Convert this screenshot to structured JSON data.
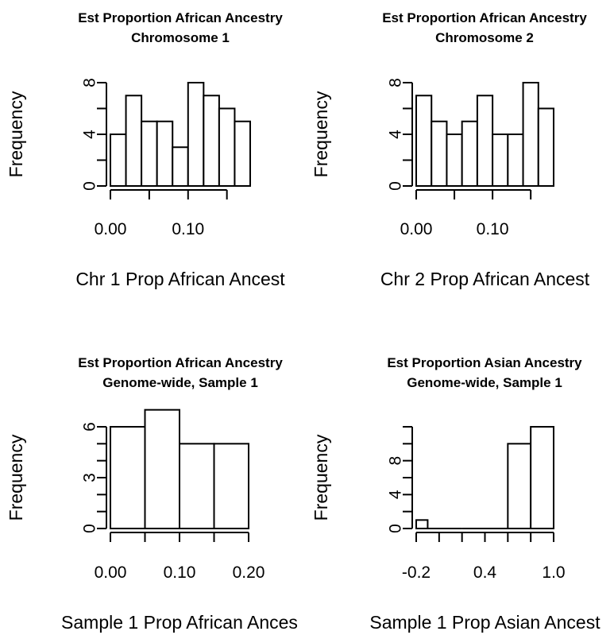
{
  "chart_data": [
    {
      "type": "bar",
      "title": [
        "Est Proportion African Ancestry",
        "Chromosome 1"
      ],
      "xlabel": "Chr 1 Prop African Ancest",
      "ylabel": "Frequency",
      "bin_edges": [
        0.0,
        0.02,
        0.04,
        0.06,
        0.08,
        0.1,
        0.12,
        0.14,
        0.16,
        0.18
      ],
      "values": [
        4,
        7,
        5,
        5,
        3,
        8,
        7,
        6,
        5
      ],
      "xlim": [
        0.0,
        0.18
      ],
      "ylim": [
        0,
        8
      ],
      "x_ticks": [
        0.0,
        0.05,
        0.1,
        0.15
      ],
      "x_tick_labels": {
        "0": "0.00",
        "2": "0.10"
      },
      "y_ticks": [
        0,
        2,
        4,
        6,
        8
      ],
      "y_tick_labels": {
        "0": "0",
        "2": "4",
        "4": "8"
      }
    },
    {
      "type": "bar",
      "title": [
        "Est Proportion African Ancestry",
        "Chromosome 2"
      ],
      "xlabel": "Chr 2 Prop African Ancest",
      "ylabel": "Frequency",
      "bin_edges": [
        0.0,
        0.02,
        0.04,
        0.06,
        0.08,
        0.1,
        0.12,
        0.14,
        0.16,
        0.18
      ],
      "values": [
        7,
        5,
        4,
        5,
        7,
        4,
        4,
        8,
        6
      ],
      "xlim": [
        0.0,
        0.18
      ],
      "ylim": [
        0,
        8
      ],
      "x_ticks": [
        0.0,
        0.05,
        0.1,
        0.15
      ],
      "x_tick_labels": {
        "0": "0.00",
        "2": "0.10"
      },
      "y_ticks": [
        0,
        2,
        4,
        6,
        8
      ],
      "y_tick_labels": {
        "0": "0",
        "2": "4",
        "4": "8"
      }
    },
    {
      "type": "bar",
      "title": [
        "Est Proportion African Ancestry",
        "Genome-wide, Sample 1"
      ],
      "xlabel": "Sample 1 Prop African Ances",
      "ylabel": "Frequency",
      "bin_edges": [
        0.0,
        0.05,
        0.1,
        0.15,
        0.2
      ],
      "values": [
        6,
        7,
        5,
        5
      ],
      "xlim": [
        0.0,
        0.2
      ],
      "ylim": [
        0,
        6
      ],
      "x_ticks": [
        0.0,
        0.05,
        0.1,
        0.15,
        0.2
      ],
      "x_tick_labels": {
        "0": "0.00",
        "2": "0.10",
        "4": "0.20"
      },
      "y_ticks": [
        0,
        1,
        2,
        3,
        4,
        5,
        6
      ],
      "y_tick_labels": {
        "0": "0",
        "3": "3",
        "6": "6"
      }
    },
    {
      "type": "bar",
      "title": [
        "Est Proportion Asian Ancestry",
        "Genome-wide, Sample 1"
      ],
      "xlabel": "Sample 1 Prop Asian Ancest",
      "ylabel": "Frequency",
      "bin_edges": [
        -0.2,
        -0.1,
        0.0,
        0.1,
        0.2,
        0.3,
        0.4,
        0.5,
        0.6,
        0.7,
        0.8,
        0.9,
        1.0
      ],
      "values": [
        1,
        0,
        0,
        0,
        0,
        0,
        0,
        0,
        10,
        0,
        12,
        0
      ],
      "bar_bins": [
        [
          -0.2,
          -0.1,
          1
        ],
        [
          -0.1,
          0.2,
          0
        ],
        [
          0.2,
          0.4,
          0
        ],
        [
          0.4,
          0.6,
          0
        ],
        [
          0.6,
          0.8,
          10
        ],
        [
          0.8,
          1.0,
          12
        ]
      ],
      "xlim": [
        -0.2,
        1.0
      ],
      "ylim": [
        0,
        12
      ],
      "x_ticks": [
        -0.2,
        0.0,
        0.2,
        0.4,
        0.6,
        0.8,
        1.0
      ],
      "x_tick_labels": {
        "0": "-0.2",
        "3": "0.4",
        "6": "1.0"
      },
      "y_ticks": [
        0,
        2,
        4,
        6,
        8,
        10,
        12
      ],
      "y_tick_labels": {
        "0": "0",
        "2": "4",
        "4": "8"
      }
    }
  ]
}
